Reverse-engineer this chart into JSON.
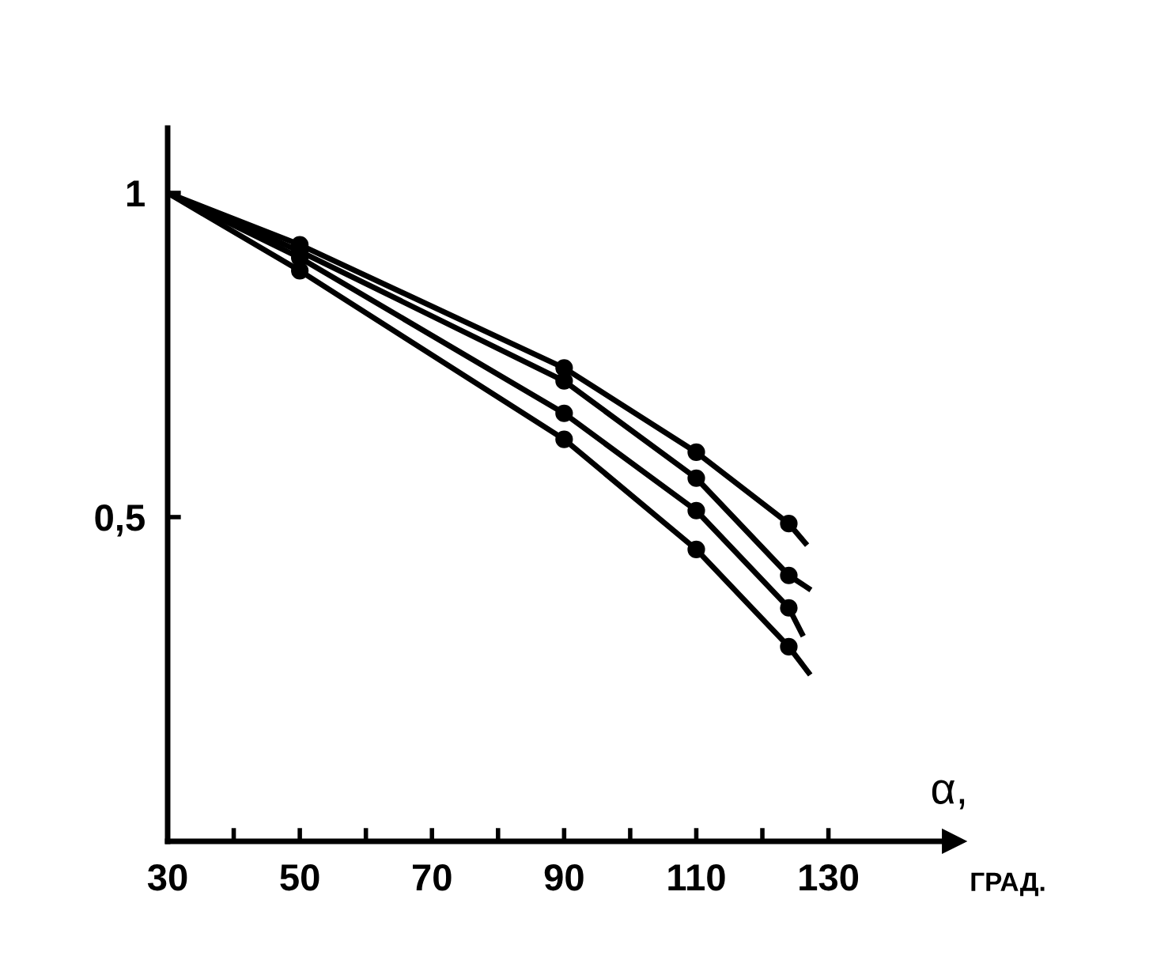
{
  "chart_data": {
    "type": "line",
    "xlabel": "α,",
    "annotations": [
      "ГРАД."
    ],
    "marker": "circle",
    "line_style": "solid",
    "grid": false,
    "legend": false,
    "xlim": [
      30,
      149
    ],
    "ylim": [
      0,
      1.1
    ],
    "xticks": [
      30,
      {
        "value": 40,
        "label": null
      },
      50,
      {
        "value": 60,
        "label": null
      },
      70,
      {
        "value": 80,
        "label": null
      },
      90,
      {
        "value": 100,
        "label": null
      },
      110,
      {
        "value": 120,
        "label": null
      },
      130
    ],
    "yticks": [
      {
        "value": 0.5,
        "label": "0,5"
      },
      1
    ],
    "series": [
      {
        "color": "#000000",
        "x": [
          30,
          50,
          90,
          110,
          124,
          126.5
        ],
        "values": [
          1.0,
          0.92,
          0.73,
          0.6,
          0.49,
          0.46
        ]
      },
      {
        "color": "#000000",
        "x": [
          30,
          50,
          90,
          110,
          124,
          127
        ],
        "values": [
          1.0,
          0.91,
          0.71,
          0.56,
          0.41,
          0.39
        ]
      },
      {
        "color": "#000000",
        "x": [
          30,
          50,
          90,
          110,
          124,
          126
        ],
        "values": [
          1.0,
          0.9,
          0.66,
          0.51,
          0.36,
          0.32
        ]
      },
      {
        "color": "#000000",
        "x": [
          30,
          50,
          90,
          110,
          124,
          127
        ],
        "values": [
          1.0,
          0.88,
          0.62,
          0.45,
          0.3,
          0.26
        ]
      }
    ]
  }
}
